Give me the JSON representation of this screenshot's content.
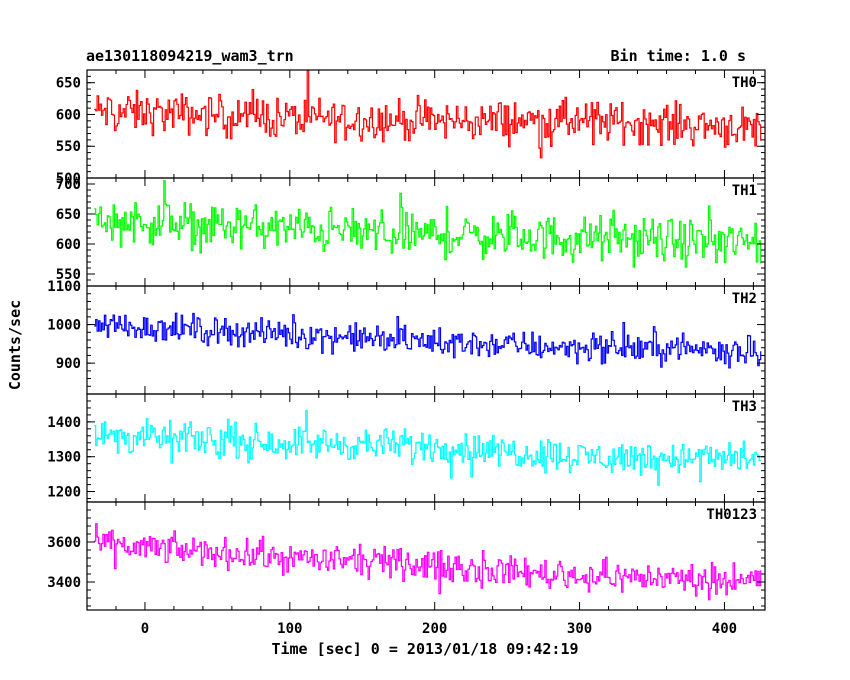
{
  "title": "ae130118094219_wam3_trn",
  "subtitle": "Bin time: 1.0 s",
  "ylabel": "Counts/sec",
  "xlabel": "Time [sec] 0 = 2013/01/18 09:42:19",
  "chart_data": {
    "type": "line",
    "xlim": [
      -40,
      428
    ],
    "x_ticks": [
      0,
      100,
      200,
      300,
      400
    ],
    "x_range": [
      -35,
      425
    ],
    "bin_time_s": 1.0,
    "panels": [
      {
        "name": "TH0",
        "color": "#ff0000",
        "ylim": [
          500,
          670
        ],
        "y_ticks": [
          500,
          550,
          600,
          650
        ],
        "trend": [
          [
            -35,
            605
          ],
          [
            100,
            595
          ],
          [
            200,
            590
          ],
          [
            300,
            590
          ],
          [
            425,
            580
          ]
        ],
        "noise": 35,
        "y_range": [
          510,
          670
        ]
      },
      {
        "name": "TH1",
        "color": "#00ff00",
        "ylim": [
          530,
          710
        ],
        "y_ticks": [
          550,
          600,
          650,
          700
        ],
        "trend": [
          [
            -35,
            640
          ],
          [
            100,
            625
          ],
          [
            200,
            615
          ],
          [
            300,
            610
          ],
          [
            425,
            600
          ]
        ],
        "noise": 40,
        "y_range": [
          540,
          710
        ]
      },
      {
        "name": "TH2",
        "color": "#0000ff",
        "ylim": [
          820,
          1100
        ],
        "y_ticks": [
          900,
          1000,
          1100
        ],
        "trend": [
          [
            -35,
            1000
          ],
          [
            100,
            975
          ],
          [
            200,
            955
          ],
          [
            300,
            940
          ],
          [
            425,
            935
          ]
        ],
        "noise": 40,
        "y_range": [
          855,
          1090
        ]
      },
      {
        "name": "TH3",
        "color": "#00ffff",
        "ylim": [
          1170,
          1480
        ],
        "y_ticks": [
          1200,
          1300,
          1400
        ],
        "trend": [
          [
            -35,
            1360
          ],
          [
            100,
            1340
          ],
          [
            200,
            1330
          ],
          [
            300,
            1300
          ],
          [
            425,
            1295
          ]
        ],
        "noise": 50,
        "y_range": [
          1200,
          1465
        ]
      },
      {
        "name": "TH0123",
        "color": "#ff00ff",
        "ylim": [
          3260,
          3800
        ],
        "y_ticks": [
          3400,
          3600
        ],
        "trend": [
          [
            -35,
            3590
          ],
          [
            100,
            3520
          ],
          [
            200,
            3480
          ],
          [
            300,
            3430
          ],
          [
            425,
            3410
          ]
        ],
        "noise": 80,
        "y_range": [
          3280,
          3780
        ]
      }
    ]
  }
}
